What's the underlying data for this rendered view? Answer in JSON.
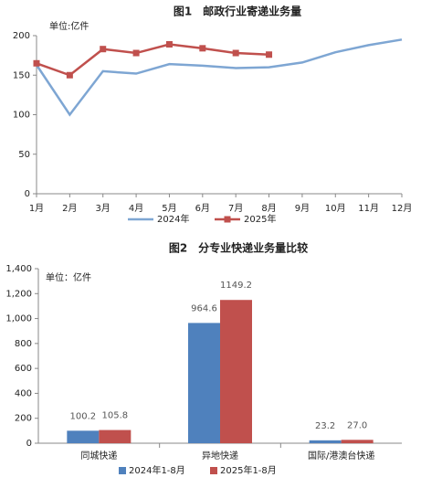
{
  "chart_data": [
    {
      "type": "line",
      "title": "图1　邮政行业寄递业务量",
      "unit_label": "单位:亿件",
      "categories": [
        "1月",
        "2月",
        "3月",
        "4月",
        "5月",
        "6月",
        "7月",
        "8月",
        "9月",
        "10月",
        "11月",
        "12月"
      ],
      "series": [
        {
          "name": "2024年",
          "color": "#7ea6d3",
          "marker": false,
          "values": [
            163,
            100,
            155,
            152,
            164,
            162,
            159,
            160,
            166,
            179,
            188,
            195
          ]
        },
        {
          "name": "2025年",
          "color": "#c0504d",
          "marker": true,
          "values": [
            165,
            150,
            183,
            178,
            189,
            184,
            178,
            176,
            null,
            null,
            null,
            null
          ]
        }
      ],
      "ylim": [
        0,
        200
      ],
      "yticks": [
        0,
        50,
        100,
        150,
        200
      ],
      "legend": "bottom"
    },
    {
      "type": "bar",
      "title": "图2　分专业快递业务量比较",
      "unit_label": "单位：亿件",
      "categories": [
        "同城快递",
        "异地快递",
        "国际/港澳台快递"
      ],
      "series": [
        {
          "name": "2024年1-8月",
          "color": "#4f81bd",
          "values": [
            100.2,
            964.6,
            23.2
          ],
          "value_labels": [
            "100.2",
            "964.6",
            "23.2"
          ]
        },
        {
          "name": "2025年1-8月",
          "color": "#c0504d",
          "values": [
            105.8,
            1149.2,
            27.0
          ],
          "value_labels": [
            "105.8",
            "1149.2",
            "27.0"
          ]
        }
      ],
      "ylim": [
        0,
        1400
      ],
      "yticks": [
        0,
        200,
        400,
        600,
        800,
        {
          "value": 1000,
          "label": "1,000"
        },
        {
          "value": 1200,
          "label": "1,200"
        },
        {
          "value": 1400,
          "label": "1,400"
        }
      ],
      "legend": "bottom"
    }
  ]
}
